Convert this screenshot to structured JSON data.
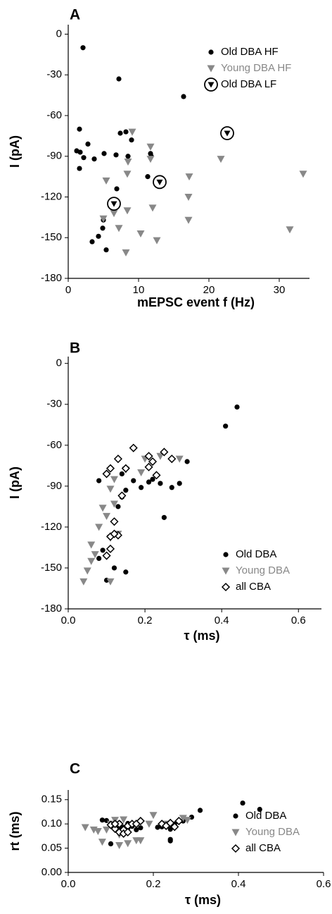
{
  "chart_data": [
    {
      "type": "scatter",
      "title": "A",
      "xlabel": "mEPSC event f (Hz)",
      "ylabel": "I (pA)",
      "xlim": [
        0,
        34.3
      ],
      "ylim": [
        -180,
        7
      ],
      "xticks": [
        0,
        10,
        20,
        30
      ],
      "yticks": [
        0,
        -30,
        -60,
        -90,
        -120,
        -150,
        -180
      ],
      "legend": "top-right",
      "series": [
        {
          "name": "Old DBA HF",
          "color": "#000000",
          "marker": "dot",
          "x": [
            2.1,
            7.2,
            16.4,
            1.6,
            7.4,
            8.2,
            9.0,
            2.8,
            1.2,
            1.7,
            5.1,
            6.8,
            8.5,
            11.7,
            11.8,
            2.2,
            3.7,
            1.6,
            11.3,
            6.9,
            5.0,
            4.9,
            4.3,
            3.4,
            5.4
          ],
          "values": [
            -10,
            -33,
            -46,
            -70,
            -73,
            -72,
            -78,
            -81,
            -86,
            -87,
            -88,
            -89,
            -90,
            -88,
            -90,
            -91,
            -92,
            -99,
            -105,
            -114,
            -137,
            -143,
            -149,
            -153,
            -159
          ]
        },
        {
          "name": "Young DBA HF",
          "color": "#888888",
          "marker": "triangle",
          "x": [
            9.1,
            11.7,
            11.7,
            8.5,
            21.7,
            8.4,
            5.4,
            17.2,
            17.1,
            12.0,
            8.4,
            5.0,
            7.2,
            10.3,
            12.6,
            17.1,
            8.2,
            33.4,
            31.5,
            6.5
          ],
          "values": [
            -72,
            -83,
            -92,
            -94,
            -92,
            -103,
            -108,
            -105,
            -120,
            -128,
            -130,
            -136,
            -143,
            -147,
            -152,
            -137,
            -161,
            -103,
            -144,
            -132
          ]
        },
        {
          "name": "Old DBA LF",
          "color": "#000000",
          "marker": "circled-triangle",
          "x": [
            6.5,
            13.0,
            22.6
          ],
          "values": [
            -125,
            -109,
            -73
          ]
        }
      ]
    },
    {
      "type": "scatter",
      "title": "B",
      "xlabel": "τ (ms)",
      "ylabel": "I (pA)",
      "xlim": [
        0,
        0.66
      ],
      "ylim": [
        -180,
        5
      ],
      "xticks": [
        {
          "value": 0,
          "label": "0.0"
        },
        0.2,
        0.4,
        0.6
      ],
      "yticks": [
        0,
        -30,
        -60,
        -90,
        -120,
        -150,
        -180
      ],
      "legend": "bottom-right",
      "series": [
        {
          "name": "Old DBA",
          "color": "#000000",
          "marker": "dot",
          "x": [
            0.41,
            0.44,
            0.31,
            0.29,
            0.24,
            0.21,
            0.19,
            0.17,
            0.14,
            0.08,
            0.15,
            0.27,
            0.14,
            0.13,
            0.25,
            0.09,
            0.08,
            0.12,
            0.15,
            0.1,
            0.22
          ],
          "values": [
            -46,
            -32,
            -72,
            -88,
            -88,
            -87,
            -91,
            -86,
            -81,
            -86,
            -93,
            -91,
            -98,
            -105,
            -113,
            -137,
            -143,
            -150,
            -153,
            -159,
            -85
          ]
        },
        {
          "name": "Young DBA",
          "color": "#888888",
          "marker": "triangle",
          "x": [
            0.29,
            0.19,
            0.15,
            0.12,
            0.11,
            0.09,
            0.12,
            0.1,
            0.08,
            0.06,
            0.07,
            0.06,
            0.05,
            0.04,
            0.11,
            0.11,
            0.2,
            0.24,
            0.13
          ],
          "values": [
            -70,
            -80,
            -78,
            -85,
            -92,
            -106,
            -103,
            -112,
            -120,
            -133,
            -140,
            -145,
            -152,
            -160,
            -160,
            -128,
            -70,
            -68,
            -125
          ]
        },
        {
          "name": "all CBA",
          "color": "#000000",
          "marker": "diamond",
          "x": [
            0.17,
            0.13,
            0.11,
            0.1,
            0.15,
            0.21,
            0.22,
            0.23,
            0.25,
            0.27,
            0.12,
            0.13,
            0.11,
            0.11,
            0.1,
            0.12,
            0.21,
            0.14
          ],
          "values": [
            -62,
            -70,
            -77,
            -81,
            -77,
            -68,
            -72,
            -82,
            -65,
            -70,
            -116,
            -126,
            -127,
            -136,
            -141,
            -125,
            -76,
            -97
          ]
        }
      ]
    },
    {
      "type": "scatter",
      "title": "C",
      "xlabel": "τ (ms)",
      "ylabel": "rt (ms)",
      "xlim": [
        0,
        0.6
      ],
      "ylim": [
        0,
        0.17
      ],
      "xticks": [
        {
          "value": 0,
          "label": "0.0"
        },
        0.2,
        0.4,
        0.6
      ],
      "yticks": [
        {
          "value": 0,
          "label": "0.00"
        },
        0.05,
        {
          "value": 0.1,
          "label": "0.10"
        },
        0.15
      ],
      "legend": "bottom-right",
      "series": [
        {
          "name": "Old DBA",
          "color": "#000000",
          "marker": "dot",
          "x": [
            0.41,
            0.45,
            0.31,
            0.29,
            0.27,
            0.25,
            0.22,
            0.21,
            0.24,
            0.24,
            0.24,
            0.16,
            0.17,
            0.15,
            0.14,
            0.13,
            0.12,
            0.1,
            0.09,
            0.08,
            0.12,
            0.14
          ],
          "values": [
            0.143,
            0.13,
            0.128,
            0.114,
            0.106,
            0.1,
            0.094,
            0.093,
            0.089,
            0.068,
            0.065,
            0.088,
            0.092,
            0.095,
            0.091,
            0.093,
            0.092,
            0.059,
            0.107,
            0.108,
            0.102,
            0.101
          ]
        },
        {
          "name": "Young DBA",
          "color": "#888888",
          "marker": "triangle",
          "x": [
            0.04,
            0.06,
            0.07,
            0.08,
            0.09,
            0.1,
            0.11,
            0.12,
            0.12,
            0.14,
            0.16,
            0.17,
            0.2,
            0.23,
            0.27,
            0.28,
            0.19,
            0.13
          ],
          "values": [
            0.093,
            0.088,
            0.085,
            0.063,
            0.088,
            0.1,
            0.108,
            0.078,
            0.056,
            0.06,
            0.066,
            0.066,
            0.118,
            0.1,
            0.112,
            0.108,
            0.1,
            0.109
          ]
        },
        {
          "name": "all CBA",
          "color": "#000000",
          "marker": "diamond",
          "x": [
            0.1,
            0.11,
            0.12,
            0.13,
            0.14,
            0.12,
            0.15,
            0.17,
            0.22,
            0.23,
            0.25,
            0.26,
            0.24,
            0.13,
            0.11,
            0.14,
            0.16
          ],
          "values": [
            0.098,
            0.09,
            0.083,
            0.088,
            0.096,
            0.1,
            0.1,
            0.106,
            0.1,
            0.096,
            0.094,
            0.106,
            0.102,
            0.08,
            0.1,
            0.083,
            0.1
          ]
        }
      ]
    }
  ]
}
